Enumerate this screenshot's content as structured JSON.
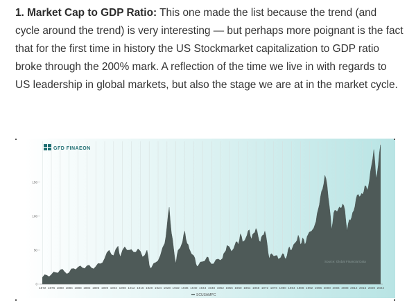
{
  "article": {
    "heading": "1. Market Cap to GDP Ratio:",
    "body": "This one made the list because the trend (and cycle around the trend) is very interesting — but perhaps more poignant is the fact that for the first time in history the US Stockmarket capitalization to GDP ratio broke through the 200% mark. A reflection of the time we live in with regards to US leadership in global markets, but also the stage we are at in the market cycle."
  },
  "chart_data": {
    "type": "area",
    "logo": "GFD FINAEON",
    "source": "Source: Global Financial Data",
    "series": [
      {
        "name": "SCUSAMPC",
        "color": "#4e5a58",
        "points": [
          [
            1872,
            10
          ],
          [
            1874,
            13
          ],
          [
            1876,
            14
          ],
          [
            1878,
            17
          ],
          [
            1880,
            21
          ],
          [
            1882,
            18
          ],
          [
            1884,
            17
          ],
          [
            1886,
            23
          ],
          [
            1888,
            25
          ],
          [
            1890,
            24
          ],
          [
            1892,
            27
          ],
          [
            1894,
            24
          ],
          [
            1896,
            26
          ],
          [
            1898,
            30
          ],
          [
            1900,
            38
          ],
          [
            1902,
            50
          ],
          [
            1904,
            42
          ],
          [
            1906,
            56
          ],
          [
            1907,
            40
          ],
          [
            1909,
            55
          ],
          [
            1911,
            50
          ],
          [
            1913,
            47
          ],
          [
            1915,
            52
          ],
          [
            1917,
            40
          ],
          [
            1919,
            50
          ],
          [
            1920,
            28
          ],
          [
            1921,
            24
          ],
          [
            1923,
            32
          ],
          [
            1925,
            42
          ],
          [
            1927,
            60
          ],
          [
            1928,
            85
          ],
          [
            1929,
            113
          ],
          [
            1930,
            75
          ],
          [
            1931,
            52
          ],
          [
            1932,
            30
          ],
          [
            1933,
            50
          ],
          [
            1935,
            62
          ],
          [
            1936,
            78
          ],
          [
            1937,
            60
          ],
          [
            1938,
            52
          ],
          [
            1940,
            42
          ],
          [
            1941,
            30
          ],
          [
            1942,
            27
          ],
          [
            1944,
            33
          ],
          [
            1946,
            40
          ],
          [
            1947,
            34
          ],
          [
            1949,
            30
          ],
          [
            1951,
            37
          ],
          [
            1953,
            38
          ],
          [
            1954,
            47
          ],
          [
            1955,
            57
          ],
          [
            1957,
            48
          ],
          [
            1959,
            62
          ],
          [
            1960,
            58
          ],
          [
            1961,
            74
          ],
          [
            1962,
            62
          ],
          [
            1964,
            72
          ],
          [
            1965,
            80
          ],
          [
            1966,
            66
          ],
          [
            1967,
            75
          ],
          [
            1968,
            82
          ],
          [
            1969,
            70
          ],
          [
            1970,
            62
          ],
          [
            1971,
            72
          ],
          [
            1972,
            78
          ],
          [
            1973,
            60
          ],
          [
            1974,
            37
          ],
          [
            1975,
            45
          ],
          [
            1977,
            42
          ],
          [
            1978,
            37
          ],
          [
            1980,
            45
          ],
          [
            1981,
            38
          ],
          [
            1982,
            42
          ],
          [
            1983,
            55
          ],
          [
            1984,
            50
          ],
          [
            1986,
            62
          ],
          [
            1987,
            72
          ],
          [
            1988,
            58
          ],
          [
            1989,
            68
          ],
          [
            1990,
            58
          ],
          [
            1991,
            70
          ],
          [
            1993,
            78
          ],
          [
            1995,
            92
          ],
          [
            1996,
            110
          ],
          [
            1997,
            128
          ],
          [
            1998,
            140
          ],
          [
            1999,
            160
          ],
          [
            2000,
            145
          ],
          [
            2001,
            115
          ],
          [
            2002,
            80
          ],
          [
            2003,
            105
          ],
          [
            2004,
            108
          ],
          [
            2005,
            110
          ],
          [
            2006,
            112
          ],
          [
            2007,
            118
          ],
          [
            2008,
            108
          ],
          [
            2009,
            78
          ],
          [
            2010,
            95
          ],
          [
            2011,
            98
          ],
          [
            2012,
            108
          ],
          [
            2013,
            125
          ],
          [
            2014,
            132
          ],
          [
            2015,
            130
          ],
          [
            2016,
            132
          ],
          [
            2017,
            145
          ],
          [
            2018,
            138
          ],
          [
            2019,
            152
          ],
          [
            2020,
            175
          ],
          [
            2021,
            198
          ],
          [
            2022,
            155
          ],
          [
            2023,
            175
          ],
          [
            2024,
            205
          ]
        ]
      }
    ],
    "yticks": [
      0,
      50,
      100,
      150
    ],
    "ylim": [
      0,
      210
    ],
    "xlim": [
      1871,
      2025
    ],
    "xticks": [
      "1872",
      "1876",
      "1880",
      "1884",
      "1888",
      "1892",
      "1896",
      "1900",
      "1904",
      "1908",
      "1912",
      "1916",
      "1920",
      "1924",
      "1928",
      "1932",
      "1936",
      "1940",
      "1944",
      "1948",
      "1952",
      "1956",
      "1960",
      "1964",
      "1968",
      "1972",
      "1976",
      "1980",
      "1984",
      "1988",
      "1992",
      "1996",
      "2000",
      "2004",
      "2008",
      "2012",
      "2016",
      "2020",
      "2024"
    ],
    "grid": "vertical",
    "legend": "bottom-center",
    "colors": {
      "background_left": "#ffffff",
      "background_right": "#b8e4e4",
      "grid": "#d6dedd",
      "text": "#555555",
      "logo": "#1f6e72"
    }
  }
}
